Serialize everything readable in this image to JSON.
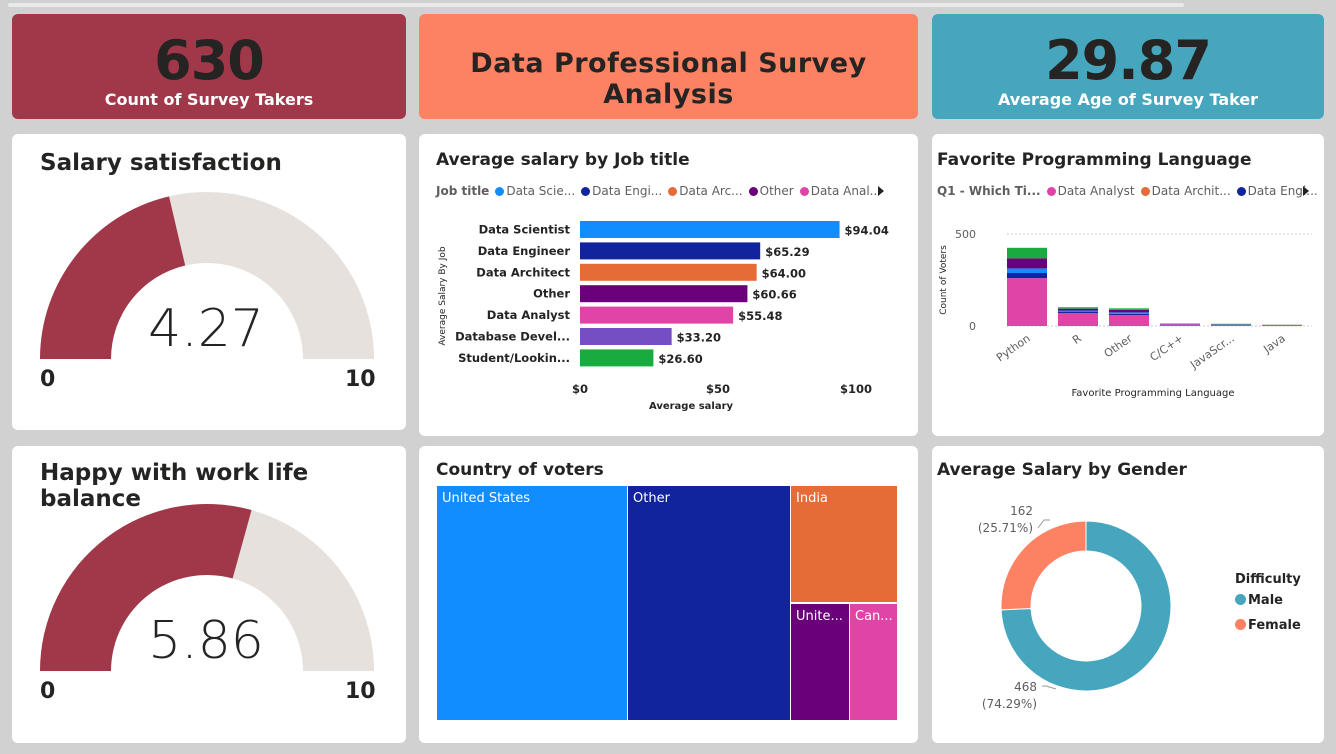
{
  "kpis": {
    "count": {
      "value": "630",
      "label": "Count of Survey Takers",
      "color": "#a0384a"
    },
    "title": {
      "label": "Data Professional Survey Analysis",
      "color": "#fd8163"
    },
    "age": {
      "value": "29.87",
      "label": "Average Age of Survey Taker",
      "color": "#46a6bd"
    }
  },
  "salary_satisfaction": {
    "title": "Salary satisfaction",
    "value": "4.27",
    "min": "0",
    "max": "10",
    "fraction": 0.427,
    "fill": "#a0384a",
    "track": "#e6e1dc"
  },
  "work_life": {
    "title": "Happy with work life balance",
    "value": "5.86",
    "min": "0",
    "max": "10",
    "fraction": 0.586,
    "fill": "#a0384a",
    "track": "#e6e1dc"
  },
  "salary_by_job": {
    "title": "Average salary by Job title",
    "legend_title": "Job title",
    "legend": [
      {
        "label": "Data Scie...",
        "color": "#118dff"
      },
      {
        "label": "Data Engi...",
        "color": "#12239e"
      },
      {
        "label": "Data Arc...",
        "color": "#e66c37"
      },
      {
        "label": "Other",
        "color": "#6b007b"
      },
      {
        "label": "Data Anal...",
        "color": "#e044a7"
      }
    ],
    "next_icon": "triangle-right-icon",
    "chart_data": {
      "type": "bar",
      "orientation": "horizontal",
      "categories": [
        "Data Scientist",
        "Data Engineer",
        "Data Architect",
        "Other",
        "Data Analyst",
        "Database Devel...",
        "Student/Lookin..."
      ],
      "values": [
        94.04,
        65.29,
        64.0,
        60.66,
        55.48,
        33.2,
        26.6
      ],
      "value_labels": [
        "$94.04",
        "$65.29",
        "$64.00",
        "$60.66",
        "$55.48",
        "$33.20",
        "$26.60"
      ],
      "colors": [
        "#118dff",
        "#12239e",
        "#e66c37",
        "#6b007b",
        "#e044a7",
        "#744ec2",
        "#1aab40"
      ],
      "xticks": [
        "$0",
        "$50",
        "$100"
      ],
      "xlim": [
        0,
        100
      ],
      "xlabel": "Average salary",
      "ylabel": "Average Salary By Job"
    }
  },
  "fav_language": {
    "title": "Favorite Programming Language",
    "legend_title": "Q1 - Which Ti...",
    "legend": [
      {
        "label": "Data Analyst",
        "color": "#e044a7"
      },
      {
        "label": "Data Archit...",
        "color": "#e66c37"
      },
      {
        "label": "Data Engi...",
        "color": "#12239e"
      }
    ],
    "next_icon": "triangle-right-icon",
    "chart_data": {
      "type": "bar",
      "stacked": true,
      "categories": [
        "Python",
        "R",
        "Other",
        "C/C++",
        "JavaScr...",
        "Java"
      ],
      "series": [
        {
          "name": "Data Analyst",
          "color": "#e044a7",
          "values": [
            260,
            70,
            60,
            8,
            6,
            4
          ]
        },
        {
          "color": "#12239e",
          "values": [
            28,
            6,
            6,
            1,
            1,
            1
          ]
        },
        {
          "color": "#118dff",
          "values": [
            25,
            8,
            8,
            1,
            1,
            0
          ]
        },
        {
          "color": "#6b007b",
          "values": [
            55,
            10,
            14,
            2,
            2,
            1
          ]
        },
        {
          "color": "#1aab40",
          "values": [
            57,
            8,
            8,
            2,
            2,
            1
          ]
        }
      ],
      "yticks": [
        "500",
        "0"
      ],
      "ylim": [
        0,
        500
      ],
      "xlabel": "Favorite Programming Language",
      "ylabel": "Count of Voters"
    }
  },
  "country": {
    "title": "Country of voters",
    "chart_data": {
      "type": "treemap",
      "items": [
        {
          "label": "United States",
          "color": "#118dff"
        },
        {
          "label": "Other",
          "color": "#12239e"
        },
        {
          "label": "India",
          "color": "#e66c37"
        },
        {
          "label": "Unite...",
          "color": "#6b007b"
        },
        {
          "label": "Can...",
          "color": "#e044a7"
        }
      ]
    }
  },
  "gender": {
    "title": "Average Salary by Gender",
    "legend_title": "Difficulty",
    "chart_data": {
      "type": "pie",
      "donut": true,
      "categories": [
        "Male",
        "Female"
      ],
      "values": [
        468,
        162
      ],
      "labels": [
        {
          "count": "468",
          "pct": "(74.29%)"
        },
        {
          "count": "162",
          "pct": "(25.71%)"
        }
      ],
      "colors": [
        "#46a6bd",
        "#fd8163"
      ]
    }
  }
}
